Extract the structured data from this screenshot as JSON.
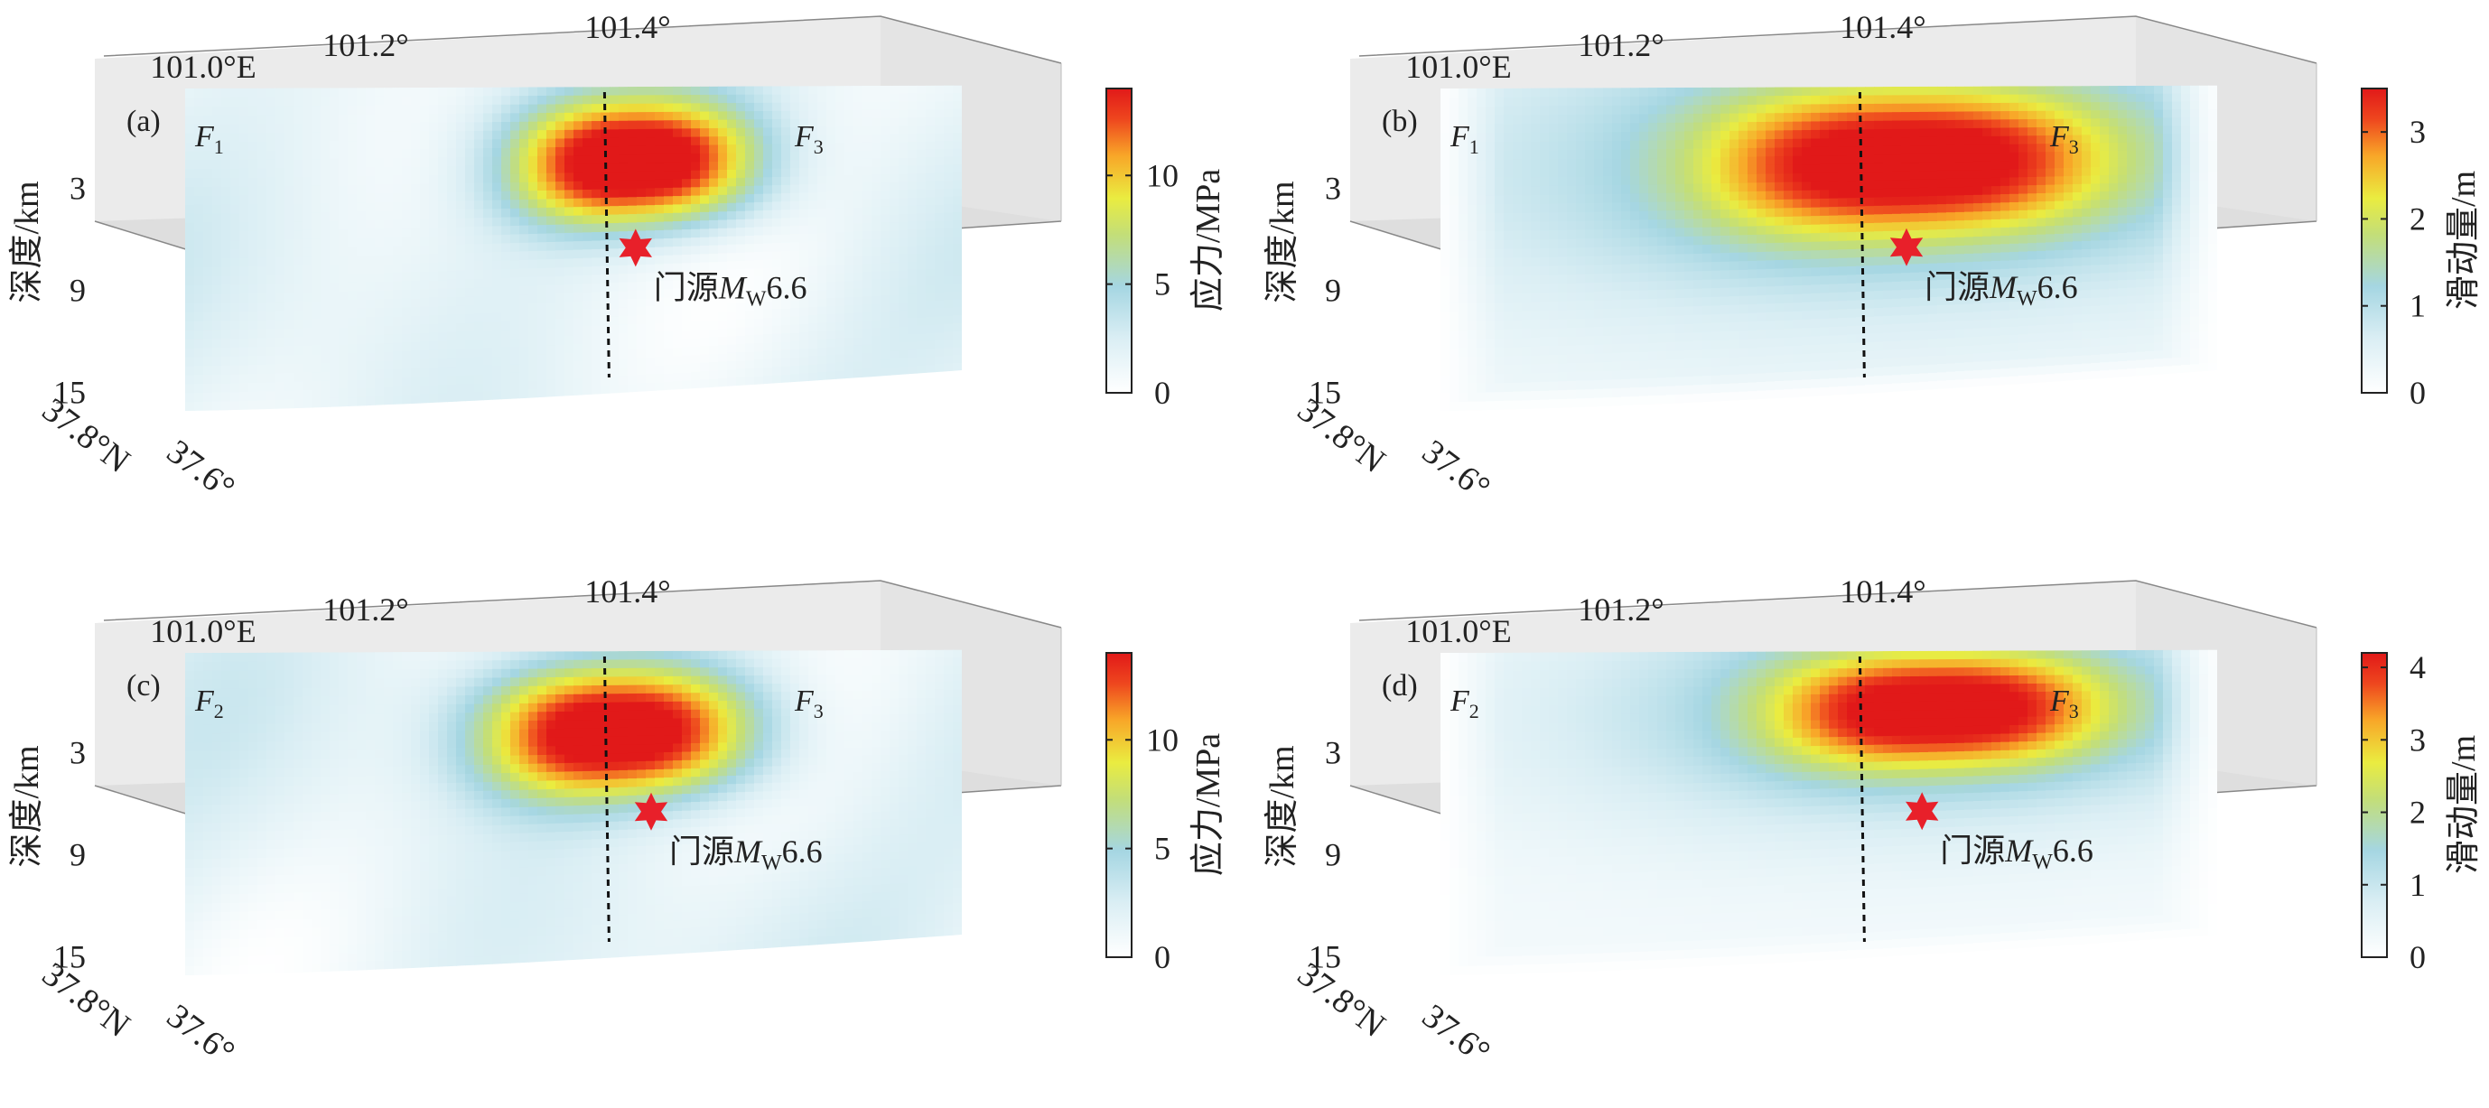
{
  "chart_data": [
    {
      "id": "a",
      "type": "heatmap",
      "panel_label": "(a)",
      "x_ticks": [
        "101.0°E",
        "101.2°",
        "101.4°"
      ],
      "y_ticks": [
        "3",
        "9",
        "15"
      ],
      "ylabel": "深度/km",
      "lat_ticks": [
        "37.8°N",
        "37.6°"
      ],
      "fault_left": {
        "base": "F",
        "sub": "1"
      },
      "fault_right": {
        "base": "F",
        "sub": "3"
      },
      "event": {
        "prefix": "门源",
        "mag_letter": "M",
        "mag_sub": "W",
        "mag_value": "6.6"
      },
      "colorbar": {
        "label": "应力/MPa",
        "ticks": [
          "0",
          "5",
          "10"
        ],
        "min": 0,
        "max": 14
      },
      "hotspot": {
        "peak": 14,
        "center_depth_km": 4.5,
        "center_lon": 101.29,
        "depth_spread_km": 3.2,
        "lon_spread": 0.07
      },
      "field_style": "stress",
      "hypocenter": {
        "lon": 101.29,
        "depth_km": 9.5
      },
      "dashed_lon": 101.27,
      "depth_range": [
        0,
        18
      ],
      "lon_range": [
        101.0,
        101.5
      ]
    },
    {
      "id": "b",
      "type": "heatmap",
      "panel_label": "(b)",
      "x_ticks": [
        "101.0°E",
        "101.2°",
        "101.4°"
      ],
      "y_ticks": [
        "3",
        "9",
        "15"
      ],
      "ylabel": "深度/km",
      "lat_ticks": [
        "37.8°N",
        "37.6°"
      ],
      "fault_left": {
        "base": "F",
        "sub": "1"
      },
      "fault_right": {
        "base": "F",
        "sub": "3"
      },
      "event": {
        "prefix": "门源",
        "mag_letter": "M",
        "mag_sub": "W",
        "mag_value": "6.6"
      },
      "colorbar": {
        "label": "滑动量/m",
        "ticks": [
          "0",
          "1",
          "2",
          "3"
        ],
        "min": 0,
        "max": 3.5
      },
      "hotspot": {
        "peak": 3.5,
        "center_depth_km": 4.5,
        "center_lon": 101.3,
        "depth_spread_km": 4.0,
        "lon_spread": 0.12
      },
      "field_style": "slip",
      "hypocenter": {
        "lon": 101.3,
        "depth_km": 9.5
      },
      "dashed_lon": 101.27,
      "depth_range": [
        0,
        18
      ],
      "lon_range": [
        101.0,
        101.5
      ]
    },
    {
      "id": "c",
      "type": "heatmap",
      "panel_label": "(c)",
      "x_ticks": [
        "101.0°E",
        "101.2°",
        "101.4°"
      ],
      "y_ticks": [
        "3",
        "9",
        "15"
      ],
      "ylabel": "深度/km",
      "lat_ticks": [
        "37.8°N",
        "37.6°"
      ],
      "fault_left": {
        "base": "F",
        "sub": "2"
      },
      "fault_right": {
        "base": "F",
        "sub": "3"
      },
      "event": {
        "prefix": "门源",
        "mag_letter": "M",
        "mag_sub": "W",
        "mag_value": "6.6"
      },
      "colorbar": {
        "label": "应力/MPa",
        "ticks": [
          "0",
          "5",
          "10"
        ],
        "min": 0,
        "max": 14
      },
      "hotspot": {
        "peak": 14,
        "center_depth_km": 4.8,
        "center_lon": 101.28,
        "depth_spread_km": 3.4,
        "lon_spread": 0.08
      },
      "field_style": "stress",
      "hypocenter": {
        "lon": 101.3,
        "depth_km": 9.5
      },
      "dashed_lon": 101.27,
      "depth_range": [
        0,
        18
      ],
      "lon_range": [
        101.0,
        101.5
      ]
    },
    {
      "id": "d",
      "type": "heatmap",
      "panel_label": "(d)",
      "x_ticks": [
        "101.0°E",
        "101.2°",
        "101.4°"
      ],
      "y_ticks": [
        "3",
        "9",
        "15"
      ],
      "ylabel": "深度/km",
      "lat_ticks": [
        "37.8°N",
        "37.6°"
      ],
      "fault_left": {
        "base": "F",
        "sub": "2"
      },
      "fault_right": {
        "base": "F",
        "sub": "3"
      },
      "event": {
        "prefix": "门源",
        "mag_letter": "M",
        "mag_sub": "W",
        "mag_value": "6.6"
      },
      "colorbar": {
        "label": "滑动量/m",
        "ticks": [
          "0",
          "1",
          "2",
          "3",
          "4"
        ],
        "min": 0,
        "max": 4.2
      },
      "hotspot": {
        "peak": 4.2,
        "center_depth_km": 3.5,
        "center_lon": 101.32,
        "depth_spread_km": 3.2,
        "lon_spread": 0.1
      },
      "field_style": "slip",
      "hypocenter": {
        "lon": 101.31,
        "depth_km": 9.5
      },
      "dashed_lon": 101.27,
      "depth_range": [
        0,
        18
      ],
      "lon_range": [
        101.0,
        101.5
      ]
    }
  ]
}
